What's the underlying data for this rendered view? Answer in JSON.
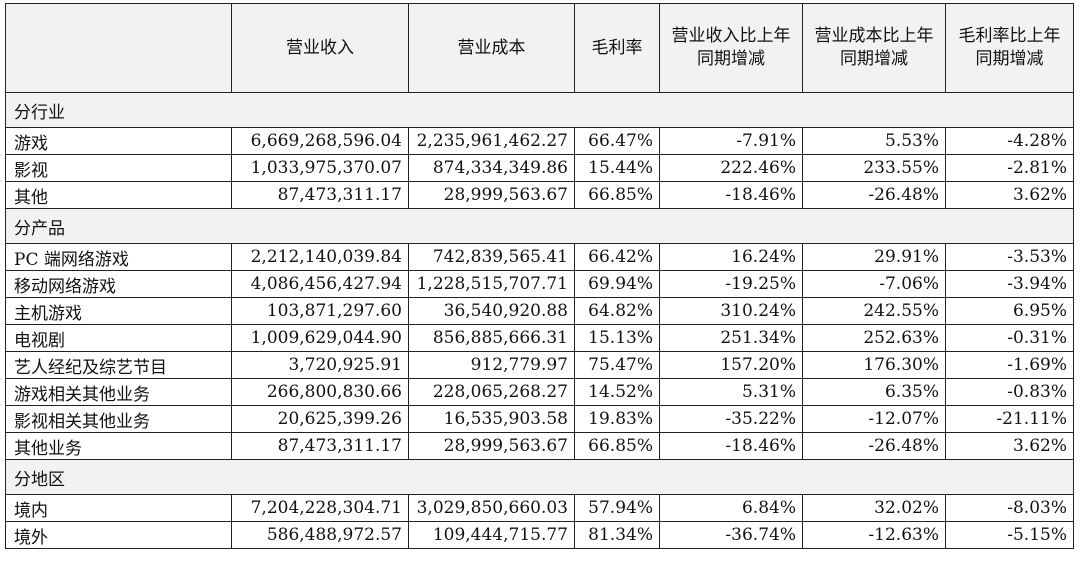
{
  "table": {
    "headers": [
      "",
      "营业收入",
      "营业成本",
      "毛利率",
      "营业收入比上年同期增减",
      "营业成本比上年同期增减",
      "毛利率比上年同期增减"
    ],
    "sections": [
      {
        "title": "分行业",
        "rows": [
          [
            "游戏",
            "6,669,268,596.04",
            "2,235,961,462.27",
            "66.47%",
            "-7.91%",
            "5.53%",
            "-4.28%"
          ],
          [
            "影视",
            "1,033,975,370.07",
            "874,334,349.86",
            "15.44%",
            "222.46%",
            "233.55%",
            "-2.81%"
          ],
          [
            "其他",
            "87,473,311.17",
            "28,999,563.67",
            "66.85%",
            "-18.46%",
            "-26.48%",
            "3.62%"
          ]
        ]
      },
      {
        "title": "分产品",
        "rows": [
          [
            "PC 端网络游戏",
            "2,212,140,039.84",
            "742,839,565.41",
            "66.42%",
            "16.24%",
            "29.91%",
            "-3.53%"
          ],
          [
            "移动网络游戏",
            "4,086,456,427.94",
            "1,228,515,707.71",
            "69.94%",
            "-19.25%",
            "-7.06%",
            "-3.94%"
          ],
          [
            "主机游戏",
            "103,871,297.60",
            "36,540,920.88",
            "64.82%",
            "310.24%",
            "242.55%",
            "6.95%"
          ],
          [
            "电视剧",
            "1,009,629,044.90",
            "856,885,666.31",
            "15.13%",
            "251.34%",
            "252.63%",
            "-0.31%"
          ],
          [
            "艺人经纪及综艺节目",
            "3,720,925.91",
            "912,779.97",
            "75.47%",
            "157.20%",
            "176.30%",
            "-1.69%"
          ],
          [
            "游戏相关其他业务",
            "266,800,830.66",
            "228,065,268.27",
            "14.52%",
            "5.31%",
            "6.35%",
            "-0.83%"
          ],
          [
            "影视相关其他业务",
            "20,625,399.26",
            "16,535,903.58",
            "19.83%",
            "-35.22%",
            "-12.07%",
            "-21.11%"
          ],
          [
            "其他业务",
            "87,473,311.17",
            "28,999,563.67",
            "66.85%",
            "-18.46%",
            "-26.48%",
            "3.62%"
          ]
        ]
      },
      {
        "title": "分地区",
        "rows": [
          [
            "境内",
            "7,204,228,304.71",
            "3,029,850,660.03",
            "57.94%",
            "6.84%",
            "32.02%",
            "-8.03%"
          ],
          [
            "境外",
            "586,488,972.57",
            "109,444,715.77",
            "81.34%",
            "-36.74%",
            "-12.63%",
            "-5.15%"
          ]
        ]
      }
    ]
  }
}
